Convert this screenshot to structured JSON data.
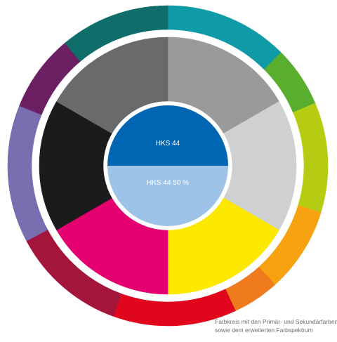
{
  "outer_ring": {
    "segments": [
      {
        "color": "#0e9aa7",
        "start": 0,
        "end": 45
      },
      {
        "color": "#5aae2e",
        "start": 45,
        "end": 67
      },
      {
        "color": "#b6cc12",
        "start": 67,
        "end": 107
      },
      {
        "color": "#f7a210",
        "start": 107,
        "end": 138
      },
      {
        "color": "#ef7b1c",
        "start": 138,
        "end": 155
      },
      {
        "color": "#e0071d",
        "start": 155,
        "end": 200
      },
      {
        "color": "#a3153b",
        "start": 200,
        "end": 242
      },
      {
        "color": "#7b6eb0",
        "start": 242,
        "end": 292
      },
      {
        "color": "#6c1f63",
        "start": 292,
        "end": 320
      },
      {
        "color": "#0f6d6a",
        "start": 320,
        "end": 360
      }
    ]
  },
  "inner_ring": {
    "segments": [
      {
        "color": "#9a9a9c",
        "start": 0,
        "end": 60
      },
      {
        "color": "#cfd0d2",
        "start": 60,
        "end": 120
      },
      {
        "color": "#fde800",
        "start": 120,
        "end": 180
      },
      {
        "color": "#e4006f",
        "start": 180,
        "end": 240
      },
      {
        "color": "#1b1b1b",
        "start": 240,
        "end": 300
      },
      {
        "color": "#6a6a6a",
        "start": 300,
        "end": 360
      }
    ]
  },
  "center": {
    "top": {
      "label": "HKS 44",
      "color": "#0066b3"
    },
    "bottom": {
      "label": "HKS 44 50 %",
      "color": "#9dc4e8"
    }
  },
  "caption": {
    "line1": "Farbkreis mit den Primär- und Sekundärfarben",
    "line2": "sowie dem erweiterten Farbspektrum"
  }
}
